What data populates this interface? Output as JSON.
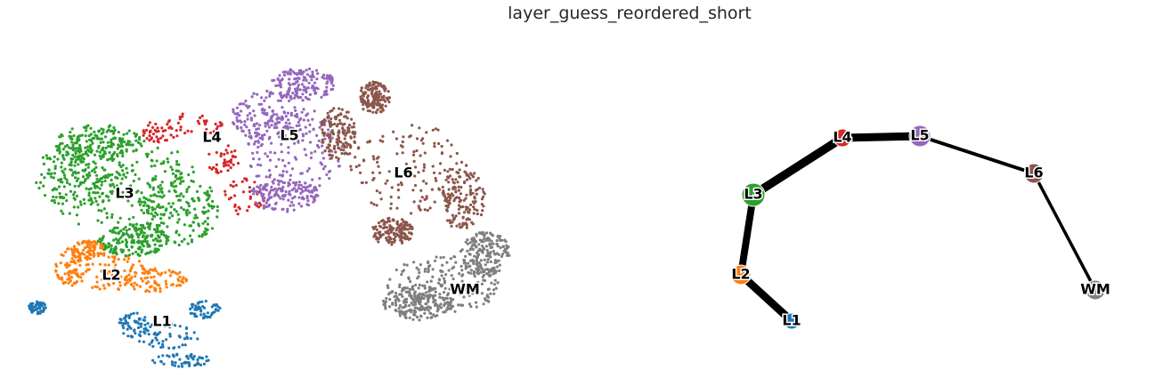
{
  "figure": {
    "title": "layer_guess_reordered_short"
  },
  "chart_data": [
    {
      "type": "scatter",
      "name": "UMAP embedding colored by layer",
      "legend": "on data",
      "grid": false,
      "axes_visible": false,
      "clusters": [
        {
          "label": "L1",
          "color": "#1f77b4"
        },
        {
          "label": "L2",
          "color": "#ff7f0e"
        },
        {
          "label": "L3",
          "color": "#2ca02c"
        },
        {
          "label": "L4",
          "color": "#d62728"
        },
        {
          "label": "L5",
          "color": "#9467bd"
        },
        {
          "label": "L6",
          "color": "#8c564b"
        },
        {
          "label": "WM",
          "color": "#7f7f7f"
        }
      ]
    },
    {
      "type": "graph",
      "name": "PAGA connectivity graph",
      "grid": false,
      "axes_visible": false,
      "nodes": [
        {
          "label": "L1",
          "color": "#1f77b4"
        },
        {
          "label": "L2",
          "color": "#ff7f0e"
        },
        {
          "label": "L3",
          "color": "#2ca02c"
        },
        {
          "label": "L4",
          "color": "#d62728"
        },
        {
          "label": "L5",
          "color": "#9467bd"
        },
        {
          "label": "L6",
          "color": "#8c564b"
        },
        {
          "label": "WM",
          "color": "#7f7f7f"
        }
      ],
      "edges": [
        {
          "source": "L1",
          "target": "L2",
          "weight": 0.9
        },
        {
          "source": "L2",
          "target": "L3",
          "weight": 0.8
        },
        {
          "source": "L3",
          "target": "L4",
          "weight": 1.0
        },
        {
          "source": "L4",
          "target": "L5",
          "weight": 0.95
        },
        {
          "source": "L5",
          "target": "L6",
          "weight": 0.3
        },
        {
          "source": "L6",
          "target": "WM",
          "weight": 0.25
        }
      ]
    }
  ]
}
